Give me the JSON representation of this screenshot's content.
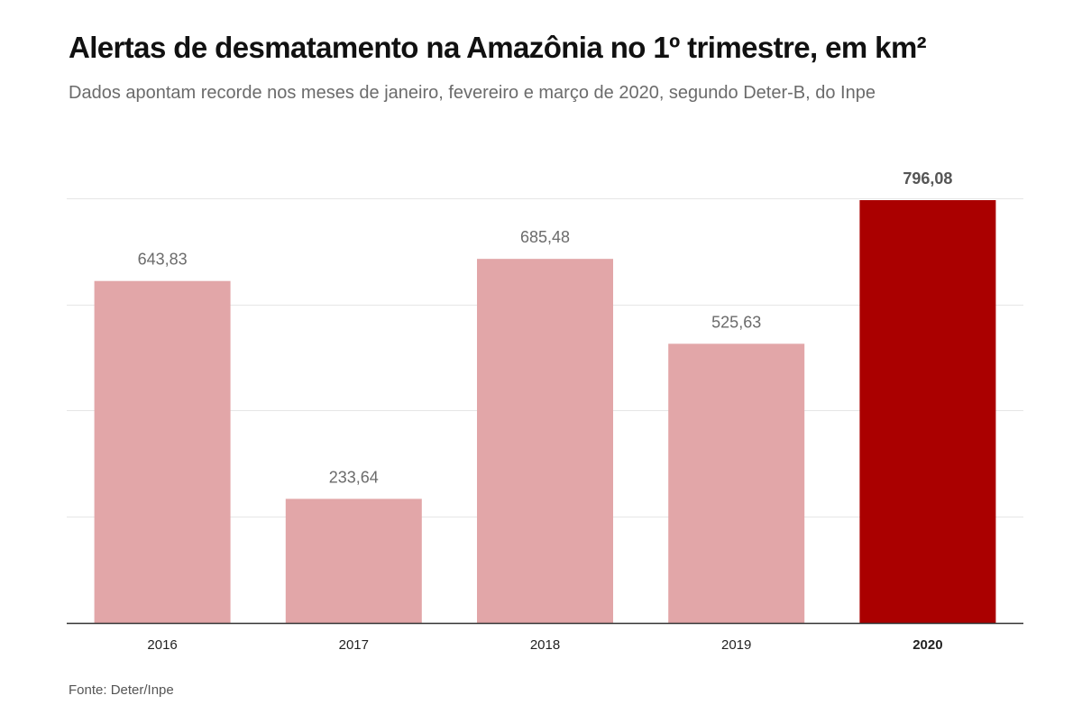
{
  "header": {
    "title": "Alertas de desmatamento na Amazônia no 1º trimestre, em km²",
    "subtitle": "Dados apontam recorde nos meses de janeiro, fevereiro e março de 2020, segundo Deter-B, do Inpe"
  },
  "footer": {
    "source": "Fonte: Deter/Inpe"
  },
  "chart_data": {
    "type": "bar",
    "title": "Alertas de desmatamento na Amazônia no 1º trimestre, em km²",
    "subtitle": "Dados apontam recorde nos meses de janeiro, fevereiro e março de 2020, segundo Deter-B, do Inpe",
    "xlabel": "",
    "ylabel": "",
    "categories": [
      "2016",
      "2017",
      "2018",
      "2019",
      "2020"
    ],
    "values": [
      643.83,
      233.64,
      685.48,
      525.63,
      796.08
    ],
    "value_labels": [
      "643,83",
      "233,64",
      "685,48",
      "525,63",
      "796,08"
    ],
    "highlight": "2020",
    "colors": {
      "bar": "#e2a6a8",
      "highlight": "#aa0000",
      "value_label": "#6b6b6b",
      "highlight_label": "#555555",
      "grid": "#e6e6e6",
      "axis": "#333333"
    },
    "ylim": [
      0,
      800
    ],
    "grid": true,
    "legend": "none"
  }
}
